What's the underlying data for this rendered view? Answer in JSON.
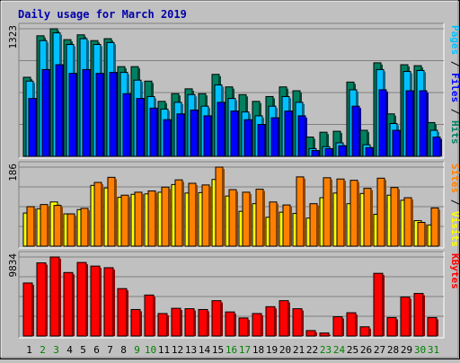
{
  "chart_data": {
    "type": "bar",
    "title": "Daily usage for March 2019",
    "title_color": "#0000aa",
    "days": [
      "1",
      "2",
      "3",
      "4",
      "5",
      "6",
      "7",
      "8",
      "9",
      "10",
      "11",
      "12",
      "13",
      "14",
      "15",
      "16",
      "17",
      "18",
      "19",
      "20",
      "21",
      "22",
      "23",
      "24",
      "25",
      "26",
      "27",
      "28",
      "29",
      "30",
      "31"
    ],
    "weekend_days": [
      "2",
      "3",
      "9",
      "10",
      "16",
      "17",
      "23",
      "24",
      "30",
      "31"
    ],
    "day_label_color": "#000000",
    "weekend_label_color": "#008000",
    "grid": true,
    "panels": [
      {
        "name": "hits-files-pages",
        "ymax_label": "1323",
        "ymax": 1323,
        "legend": [
          {
            "text": "Pages",
            "color": "#00c0ff"
          },
          {
            "text": " / ",
            "color": "#000000"
          },
          {
            "text": "Files",
            "color": "#0000ff"
          },
          {
            "text": " / ",
            "color": "#000000"
          },
          {
            "text": "Hits",
            "color": "#008060"
          }
        ],
        "series": [
          {
            "color": "#008060",
            "values": [
              820,
              1250,
              1323,
              1210,
              1260,
              1200,
              1220,
              930,
              930,
              780,
              570,
              650,
              700,
              650,
              850,
              720,
              640,
              570,
              620,
              720,
              680,
              200,
              250,
              260,
              770,
              270,
              970,
              440,
              950,
              940,
              350
            ]
          },
          {
            "color": "#00c0ff",
            "values": [
              780,
              1200,
              1280,
              1160,
              1220,
              1160,
              1180,
              870,
              790,
              620,
              490,
              560,
              640,
              520,
              740,
              600,
              460,
              420,
              520,
              620,
              560,
              80,
              100,
              140,
              690,
              120,
              900,
              340,
              880,
              890,
              270
            ]
          },
          {
            "color": "#0000ff",
            "values": [
              600,
              900,
              950,
              860,
              900,
              860,
              870,
              650,
              600,
              500,
              380,
              440,
              480,
              420,
              560,
              470,
              380,
              330,
              400,
              470,
              420,
              60,
              80,
              110,
              520,
              90,
              690,
              270,
              680,
              680,
              200
            ]
          }
        ]
      },
      {
        "name": "visits-sites",
        "ymax_label": "186",
        "ymax": 186,
        "legend": [
          {
            "text": "Sites",
            "color": "#ff8000"
          },
          {
            "text": " / ",
            "color": "#000000"
          },
          {
            "text": "Visits",
            "color": "#ffff00"
          }
        ],
        "series": [
          {
            "color": "#ffff00",
            "values": [
              78,
              88,
              104,
              76,
              86,
              143,
              137,
              115,
              122,
              123,
              127,
              145,
              125,
              126,
              157,
              118,
              82,
              100,
              68,
              80,
              77,
              66,
              114,
              125,
              100,
              124,
              75,
              120,
              108,
              60,
              50
            ]
          },
          {
            "color": "#ff8000",
            "values": [
              93,
              98,
              96,
              76,
              89,
              150,
              162,
              120,
              127,
              130,
              139,
              156,
              148,
              144,
              186,
              133,
              127,
              134,
              104,
              97,
              163,
              100,
              161,
              158,
              155,
              136,
              160,
              138,
              114,
              56,
              90
            ]
          }
        ]
      },
      {
        "name": "kbytes",
        "ymax_label": "9834",
        "ymax": 9834,
        "legend": [
          {
            "text": "KBytes",
            "color": "#ff0000"
          }
        ],
        "series": [
          {
            "color": "#ff0000",
            "values": [
              6600,
              9100,
              9834,
              7900,
              9150,
              8700,
              8500,
              5900,
              3300,
              5100,
              2800,
              3450,
              3400,
              3300,
              4400,
              3000,
              2250,
              2800,
              3650,
              4400,
              3400,
              680,
              380,
              2400,
              2900,
              1150,
              7800,
              2300,
              4850,
              5300,
              2300
            ]
          }
        ]
      }
    ]
  }
}
